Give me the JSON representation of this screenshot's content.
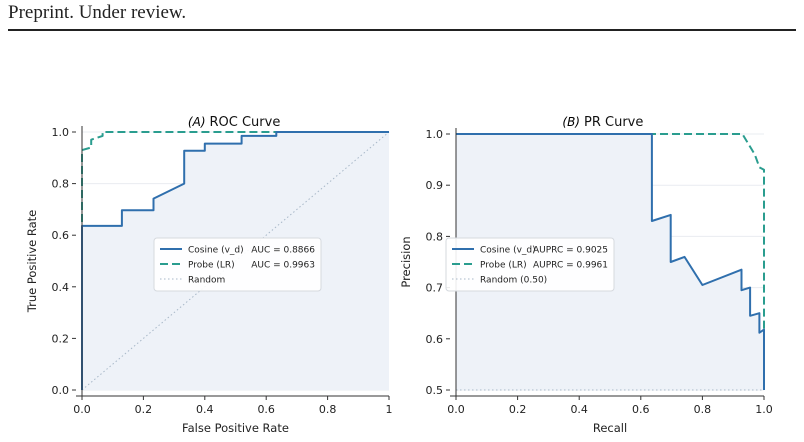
{
  "page": {
    "header_text": "Preprint. Under review."
  },
  "colors": {
    "cosine": "#2f6fad",
    "probe": "#2a9d8f",
    "random": "#a8b8c8",
    "fill": "#eef2f8",
    "axis": "#333333",
    "grid": "#e9ecf1"
  },
  "chart_data": [
    {
      "type": "line",
      "panel_label": "(A)",
      "title": "ROC Curve",
      "xlabel": "False Positive Rate",
      "ylabel": "True Positive Rate",
      "xlim": [
        0,
        1
      ],
      "ylim": [
        0,
        1
      ],
      "x_ticks": [
        "0.0",
        "0.2",
        "0.4",
        "0.6",
        "0.8",
        "1"
      ],
      "y_ticks": [
        "0.0",
        "0.2",
        "0.4",
        "0.6",
        "0.8",
        "1.0"
      ],
      "grid": true,
      "legend_position": "center-right",
      "series": [
        {
          "name": "Cosine (v_d)",
          "metric": "AUC = 0.8866",
          "style": "solid",
          "x": [
            0,
            0,
            0.13,
            0.13,
            0.233,
            0.233,
            0.333,
            0.333,
            0.4,
            0.4,
            0.52,
            0.52,
            0.633,
            0.633,
            1
          ],
          "y": [
            0,
            0.636,
            0.636,
            0.697,
            0.697,
            0.742,
            0.8,
            0.927,
            0.927,
            0.955,
            0.955,
            0.985,
            0.985,
            1,
            1
          ]
        },
        {
          "name": "Probe (LR)",
          "metric": "AUC = 0.9963",
          "style": "dashed",
          "x": [
            0,
            0,
            0.03,
            0.03,
            0.067,
            0.067,
            1
          ],
          "y": [
            0,
            0.93,
            0.94,
            0.97,
            0.985,
            1,
            1
          ]
        },
        {
          "name": "Random",
          "metric": "",
          "style": "dotted",
          "x": [
            0,
            1
          ],
          "y": [
            0,
            1
          ]
        }
      ]
    },
    {
      "type": "line",
      "panel_label": "(B)",
      "title": "PR Curve",
      "xlabel": "Recall",
      "ylabel": "Precision",
      "xlim": [
        0,
        1
      ],
      "ylim": [
        0.5,
        1
      ],
      "x_ticks": [
        "0.0",
        "0.2",
        "0.4",
        "0.6",
        "0.8",
        "1.0"
      ],
      "y_ticks": [
        "0.5",
        "0.6",
        "0.7",
        "0.8",
        "0.9",
        "1.0"
      ],
      "grid": true,
      "legend_position": "center-left",
      "series": [
        {
          "name": "Cosine (v_d)",
          "metric": "AUPRC = 0.9025",
          "style": "solid",
          "x": [
            0,
            0.636,
            0.636,
            0.697,
            0.697,
            0.742,
            0.8,
            0.927,
            0.927,
            0.955,
            0.955,
            0.985,
            0.985,
            1,
            1
          ],
          "y": [
            1,
            1,
            0.83,
            0.842,
            0.75,
            0.76,
            0.705,
            0.735,
            0.695,
            0.7,
            0.645,
            0.65,
            0.612,
            0.618,
            0.5
          ]
        },
        {
          "name": "Probe (LR)",
          "metric": "AUPRC = 0.9961",
          "style": "dashed",
          "x": [
            0,
            0.93,
            0.97,
            0.985,
            1,
            1
          ],
          "y": [
            1,
            1,
            0.96,
            0.935,
            0.93,
            0.5
          ]
        },
        {
          "name": "Random (0.50)",
          "metric": "",
          "style": "dotted",
          "x": [
            0,
            1
          ],
          "y": [
            0.5,
            0.5
          ]
        }
      ]
    }
  ]
}
